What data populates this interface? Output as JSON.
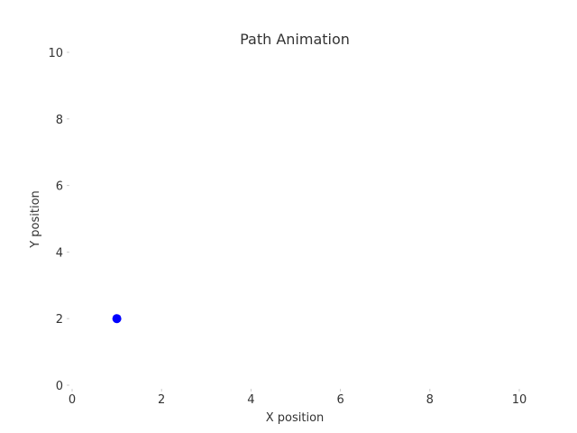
{
  "chart_data": {
    "type": "scatter",
    "title": "Path Animation",
    "xlabel": "X position",
    "ylabel": "Y position",
    "xlim": [
      0,
      10
    ],
    "ylim": [
      0,
      10
    ],
    "xticks": [
      "0",
      "2",
      "4",
      "6",
      "8",
      "10"
    ],
    "yticks": [
      "0",
      "2",
      "4",
      "6",
      "8",
      "10"
    ],
    "grid": false,
    "series": [
      {
        "points": [
          {
            "x": 1,
            "y": 2
          }
        ],
        "color": "#0000ff"
      }
    ]
  }
}
